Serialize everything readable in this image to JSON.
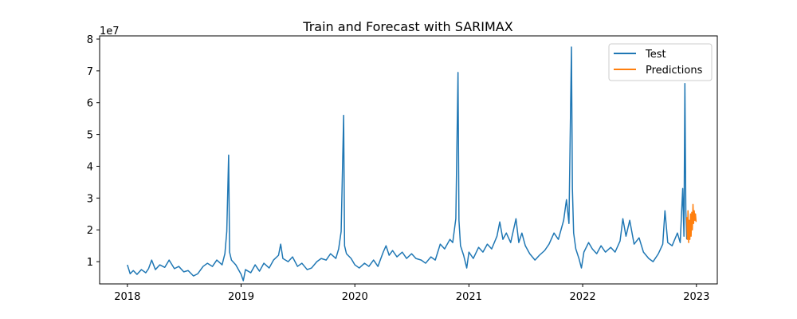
{
  "chart_data": {
    "type": "line",
    "title": "Train and Forecast with SARIMAX",
    "xlabel": "",
    "ylabel": "",
    "y_offset_label": "1e7",
    "xlim": [
      "2017-10-04",
      "2023-03-09"
    ],
    "ylim": [
      0.3,
      8.1
    ],
    "x_ticks": [
      "2018",
      "2019",
      "2020",
      "2021",
      "2022",
      "2023"
    ],
    "y_ticks": [
      1,
      2,
      3,
      4,
      5,
      6,
      7,
      8
    ],
    "legend_placement": "top-right",
    "series": [
      {
        "name": "Test",
        "color": "#1f77b4",
        "points": [
          [
            "2018-01-01",
            0.9
          ],
          [
            "2018-01-10",
            0.62
          ],
          [
            "2018-01-20",
            0.72
          ],
          [
            "2018-02-01",
            0.6
          ],
          [
            "2018-02-15",
            0.75
          ],
          [
            "2018-03-01",
            0.65
          ],
          [
            "2018-03-10",
            0.78
          ],
          [
            "2018-03-20",
            1.05
          ],
          [
            "2018-04-01",
            0.75
          ],
          [
            "2018-04-15",
            0.9
          ],
          [
            "2018-05-01",
            0.82
          ],
          [
            "2018-05-15",
            1.05
          ],
          [
            "2018-06-01",
            0.78
          ],
          [
            "2018-06-15",
            0.85
          ],
          [
            "2018-07-01",
            0.68
          ],
          [
            "2018-07-15",
            0.72
          ],
          [
            "2018-08-01",
            0.55
          ],
          [
            "2018-08-15",
            0.62
          ],
          [
            "2018-09-01",
            0.85
          ],
          [
            "2018-09-15",
            0.95
          ],
          [
            "2018-10-01",
            0.85
          ],
          [
            "2018-10-15",
            1.05
          ],
          [
            "2018-11-01",
            0.9
          ],
          [
            "2018-11-10",
            1.25
          ],
          [
            "2018-11-16",
            1.95
          ],
          [
            "2018-11-22",
            4.35
          ],
          [
            "2018-11-25",
            1.3
          ],
          [
            "2018-12-01",
            1.05
          ],
          [
            "2018-12-15",
            0.9
          ],
          [
            "2019-01-01",
            0.6
          ],
          [
            "2019-01-08",
            0.4
          ],
          [
            "2019-01-15",
            0.75
          ],
          [
            "2019-02-01",
            0.65
          ],
          [
            "2019-02-15",
            0.9
          ],
          [
            "2019-03-01",
            0.7
          ],
          [
            "2019-03-15",
            0.95
          ],
          [
            "2019-04-01",
            0.8
          ],
          [
            "2019-04-15",
            1.05
          ],
          [
            "2019-05-01",
            1.2
          ],
          [
            "2019-05-08",
            1.55
          ],
          [
            "2019-05-15",
            1.1
          ],
          [
            "2019-06-01",
            1.0
          ],
          [
            "2019-06-15",
            1.15
          ],
          [
            "2019-07-01",
            0.85
          ],
          [
            "2019-07-15",
            0.95
          ],
          [
            "2019-08-01",
            0.75
          ],
          [
            "2019-08-15",
            0.8
          ],
          [
            "2019-09-01",
            1.0
          ],
          [
            "2019-09-15",
            1.1
          ],
          [
            "2019-10-01",
            1.05
          ],
          [
            "2019-10-15",
            1.25
          ],
          [
            "2019-11-01",
            1.1
          ],
          [
            "2019-11-10",
            1.4
          ],
          [
            "2019-11-18",
            1.95
          ],
          [
            "2019-11-26",
            5.6
          ],
          [
            "2019-11-29",
            1.5
          ],
          [
            "2019-12-05",
            1.25
          ],
          [
            "2019-12-20",
            1.1
          ],
          [
            "2020-01-01",
            0.9
          ],
          [
            "2020-01-15",
            0.8
          ],
          [
            "2020-02-01",
            0.95
          ],
          [
            "2020-02-15",
            0.85
          ],
          [
            "2020-03-01",
            1.05
          ],
          [
            "2020-03-15",
            0.85
          ],
          [
            "2020-04-01",
            1.3
          ],
          [
            "2020-04-10",
            1.5
          ],
          [
            "2020-04-20",
            1.2
          ],
          [
            "2020-05-01",
            1.35
          ],
          [
            "2020-05-15",
            1.15
          ],
          [
            "2020-06-01",
            1.3
          ],
          [
            "2020-06-15",
            1.1
          ],
          [
            "2020-07-01",
            1.25
          ],
          [
            "2020-07-15",
            1.1
          ],
          [
            "2020-08-01",
            1.05
          ],
          [
            "2020-08-15",
            0.95
          ],
          [
            "2020-09-01",
            1.15
          ],
          [
            "2020-09-15",
            1.05
          ],
          [
            "2020-10-01",
            1.55
          ],
          [
            "2020-10-15",
            1.4
          ],
          [
            "2020-11-01",
            1.7
          ],
          [
            "2020-11-10",
            1.6
          ],
          [
            "2020-11-20",
            2.35
          ],
          [
            "2020-11-27",
            6.95
          ],
          [
            "2020-11-30",
            2.3
          ],
          [
            "2020-12-05",
            1.5
          ],
          [
            "2020-12-15",
            1.2
          ],
          [
            "2020-12-25",
            0.8
          ],
          [
            "2021-01-01",
            1.3
          ],
          [
            "2021-01-15",
            1.1
          ],
          [
            "2021-02-01",
            1.45
          ],
          [
            "2021-02-15",
            1.3
          ],
          [
            "2021-03-01",
            1.55
          ],
          [
            "2021-03-15",
            1.4
          ],
          [
            "2021-04-01",
            1.8
          ],
          [
            "2021-04-10",
            2.25
          ],
          [
            "2021-04-20",
            1.7
          ],
          [
            "2021-05-01",
            1.9
          ],
          [
            "2021-05-15",
            1.6
          ],
          [
            "2021-06-01",
            2.35
          ],
          [
            "2021-06-10",
            1.6
          ],
          [
            "2021-06-20",
            1.9
          ],
          [
            "2021-07-01",
            1.5
          ],
          [
            "2021-07-15",
            1.25
          ],
          [
            "2021-08-01",
            1.05
          ],
          [
            "2021-08-15",
            1.2
          ],
          [
            "2021-09-01",
            1.35
          ],
          [
            "2021-09-15",
            1.55
          ],
          [
            "2021-10-01",
            1.9
          ],
          [
            "2021-10-15",
            1.7
          ],
          [
            "2021-11-01",
            2.3
          ],
          [
            "2021-11-10",
            2.95
          ],
          [
            "2021-11-18",
            2.2
          ],
          [
            "2021-11-26",
            7.75
          ],
          [
            "2021-11-29",
            3.3
          ],
          [
            "2021-12-03",
            1.9
          ],
          [
            "2021-12-10",
            1.4
          ],
          [
            "2021-12-20",
            1.1
          ],
          [
            "2021-12-28",
            0.8
          ],
          [
            "2022-01-05",
            1.3
          ],
          [
            "2022-01-20",
            1.6
          ],
          [
            "2022-02-01",
            1.4
          ],
          [
            "2022-02-15",
            1.25
          ],
          [
            "2022-03-01",
            1.5
          ],
          [
            "2022-03-15",
            1.3
          ],
          [
            "2022-04-01",
            1.45
          ],
          [
            "2022-04-15",
            1.3
          ],
          [
            "2022-05-01",
            1.65
          ],
          [
            "2022-05-10",
            2.35
          ],
          [
            "2022-05-20",
            1.8
          ],
          [
            "2022-06-01",
            2.3
          ],
          [
            "2022-06-15",
            1.55
          ],
          [
            "2022-07-01",
            1.75
          ],
          [
            "2022-07-15",
            1.3
          ],
          [
            "2022-08-01",
            1.1
          ],
          [
            "2022-08-15",
            1.0
          ],
          [
            "2022-09-01",
            1.25
          ],
          [
            "2022-09-15",
            1.55
          ],
          [
            "2022-09-22",
            2.6
          ],
          [
            "2022-10-01",
            1.6
          ],
          [
            "2022-10-15",
            1.5
          ],
          [
            "2022-11-01",
            1.9
          ],
          [
            "2022-11-10",
            1.6
          ],
          [
            "2022-11-18",
            3.3
          ],
          [
            "2022-11-22",
            1.8
          ],
          [
            "2022-11-25",
            6.6
          ],
          [
            "2022-11-28",
            2.6
          ],
          [
            "2022-12-01",
            1.7
          ]
        ]
      },
      {
        "name": "Predictions",
        "color": "#ff7f0e",
        "points": [
          [
            "2022-12-01",
            2.4
          ],
          [
            "2022-12-03",
            1.7
          ],
          [
            "2022-12-05",
            2.6
          ],
          [
            "2022-12-07",
            1.6
          ],
          [
            "2022-12-09",
            2.3
          ],
          [
            "2022-12-11",
            1.7
          ],
          [
            "2022-12-13",
            2.5
          ],
          [
            "2022-12-15",
            1.8
          ],
          [
            "2022-12-17",
            2.55
          ],
          [
            "2022-12-19",
            2.0
          ],
          [
            "2022-12-21",
            2.8
          ],
          [
            "2022-12-23",
            2.2
          ],
          [
            "2022-12-25",
            2.6
          ],
          [
            "2022-12-27",
            2.3
          ],
          [
            "2022-12-29",
            2.5
          ],
          [
            "2022-12-31",
            2.25
          ]
        ]
      }
    ]
  }
}
